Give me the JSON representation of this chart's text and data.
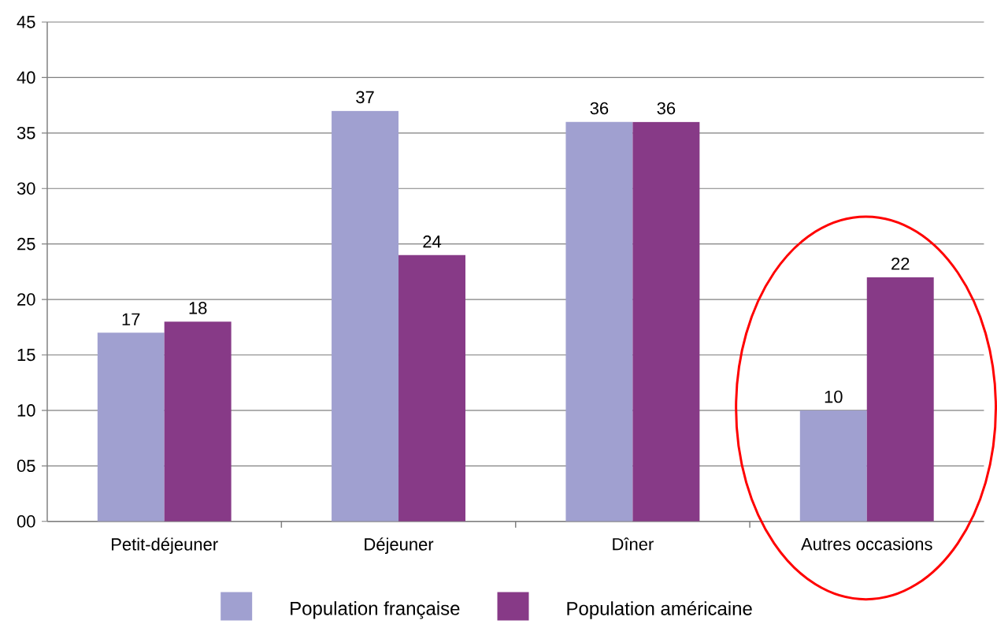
{
  "chart_data": {
    "type": "bar",
    "categories": [
      "Petit-déjeuner",
      "Déjeuner",
      "Dîner",
      "Autres occasions"
    ],
    "series": [
      {
        "name": "Population française",
        "color": "#a0a0d0",
        "values": [
          17,
          37,
          36,
          10
        ]
      },
      {
        "name": "Population américaine",
        "color": "#873a87",
        "values": [
          18,
          24,
          36,
          22
        ]
      }
    ],
    "ylim": [
      0,
      45
    ],
    "yticks": [
      {
        "value": 0,
        "label": "00"
      },
      {
        "value": 5,
        "label": "05"
      },
      10,
      15,
      20,
      25,
      30,
      35,
      40,
      45
    ],
    "grid": "y",
    "legend": "bottom",
    "data_labels": true
  }
}
